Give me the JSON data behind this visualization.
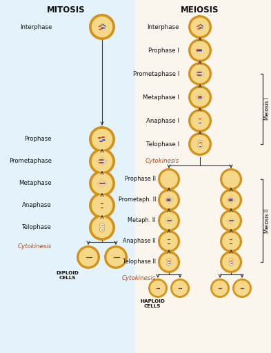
{
  "bg_left": "#e4f3fb",
  "bg_right": "#faf6ee",
  "cell_border": "#d4921a",
  "cell_fill": "#f5d888",
  "cell_fill2": "#faebd0",
  "nucleus_fill": "#f0e8d0",
  "title_mitosis": "MITOSIS",
  "title_meiosis": "MEIOSIS",
  "title_fontsize": 8.5,
  "label_fontsize": 6.2,
  "small_fontsize": 5.2,
  "mitosis_stages": [
    "Interphase",
    "Prophase",
    "Prometaphase",
    "Metaphase",
    "Anaphase",
    "Telophase"
  ],
  "meiosis1_stages": [
    "Interphase",
    "Prophase I",
    "Prometaphase I",
    "Metaphase I",
    "Anaphase I",
    "Telophase I"
  ],
  "meiosis2_stages": [
    "Prophase II",
    "Prometaph. II",
    "Metaph. II",
    "Anaphase II",
    "Telophase II"
  ],
  "cyto_color": "#cc4400",
  "line_color": "#333333",
  "red_chr": "#cc2222",
  "blue_chr": "#2244cc",
  "meiosis1_label": "Meiosis I",
  "meiosis2_label": "Meiosis II",
  "diploid_label": "DIPLOID\nCELLS",
  "haploid_label": "HAPLOID\nCELLS",
  "cytokinesis_text": "Cytokinesis"
}
